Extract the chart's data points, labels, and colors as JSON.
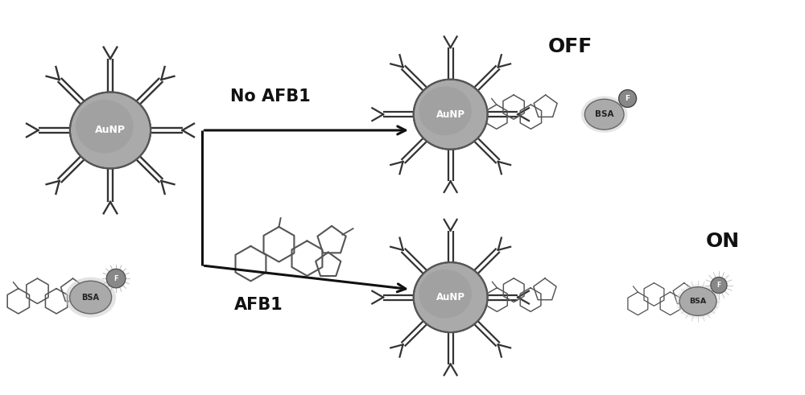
{
  "bg_color": "#ffffff",
  "aunp_color": "#888888",
  "aunp_edge": "#555555",
  "aunp_label": "AuNP",
  "bsa_color": "#aaaaaa",
  "bsa_edge": "#666666",
  "bsa_label": "BSA",
  "f_color": "#888888",
  "f_edge": "#555555",
  "f_label": "F",
  "arm_color": "#333333",
  "struct_color": "#555555",
  "arrow_color": "#111111",
  "text_no_afb1": "No AFB1",
  "text_afb1": "AFB1",
  "text_off": "OFF",
  "text_on": "ON",
  "text_fontsize": 15,
  "label_fontsize": 18,
  "aunp_fontsize": 9,
  "bsa_fontsize": 8
}
